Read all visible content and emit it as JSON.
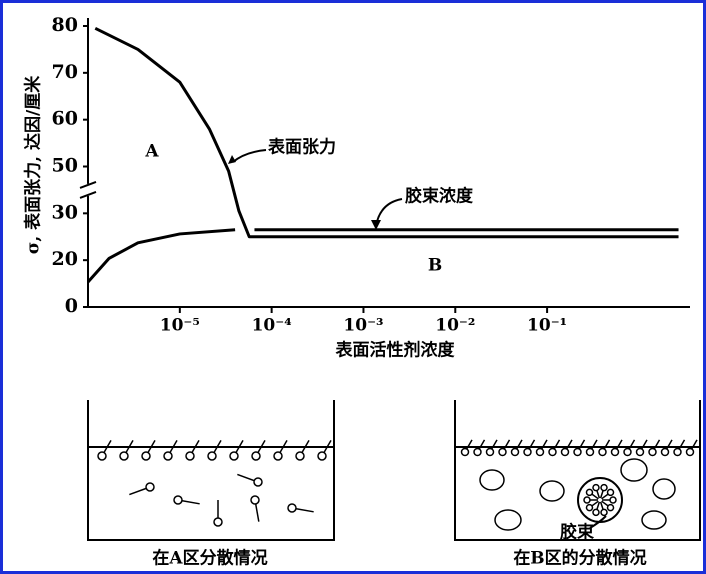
{
  "chart_data": {
    "type": "line",
    "y_label": "σ, 表面张力, 达因/厘米",
    "x_label": "表面活性剂浓度",
    "annotations": [
      "A",
      "B"
    ],
    "x_scale": "log",
    "xlim": [
      1e-06,
      3.6
    ],
    "xticks": [
      {
        "value": 1e-05,
        "label": "10⁻⁵"
      },
      {
        "value": 0.0001,
        "label": "10⁻⁴"
      },
      {
        "value": 0.001,
        "label": "10⁻³"
      },
      {
        "value": 0.01,
        "label": "10⁻²"
      },
      {
        "value": 0.1,
        "label": "10⁻¹"
      }
    ],
    "ylim": [
      0,
      80
    ],
    "yticks": [
      0,
      20,
      30,
      50,
      60,
      70,
      80
    ],
    "axis_break": true,
    "series": [
      {
        "name": "表面张力",
        "color": "#000000",
        "x": [
          1.2e-06,
          3.5e-06,
          1e-05,
          2.1e-05,
          3.4e-05,
          4.4e-05,
          5.7e-05,
          2.7
        ],
        "values": [
          79.5,
          75,
          68,
          58,
          48,
          31,
          25,
          25
        ]
      },
      {
        "name": "胶束浓度",
        "color": "#000000",
        "x": [
          1e-06,
          1.7e-06,
          3.5e-06,
          1e-05,
          4e-05,
          5e-05,
          6.5e-05,
          2.7
        ],
        "values": [
          10.7,
          20.4,
          23.7,
          25.6,
          26.5,
          null,
          26.5,
          26.5
        ]
      }
    ]
  },
  "diagrams": [
    {
      "caption": "在A区分散情况"
    },
    {
      "caption": "在B区的分散情况",
      "label": "胶束"
    }
  ]
}
